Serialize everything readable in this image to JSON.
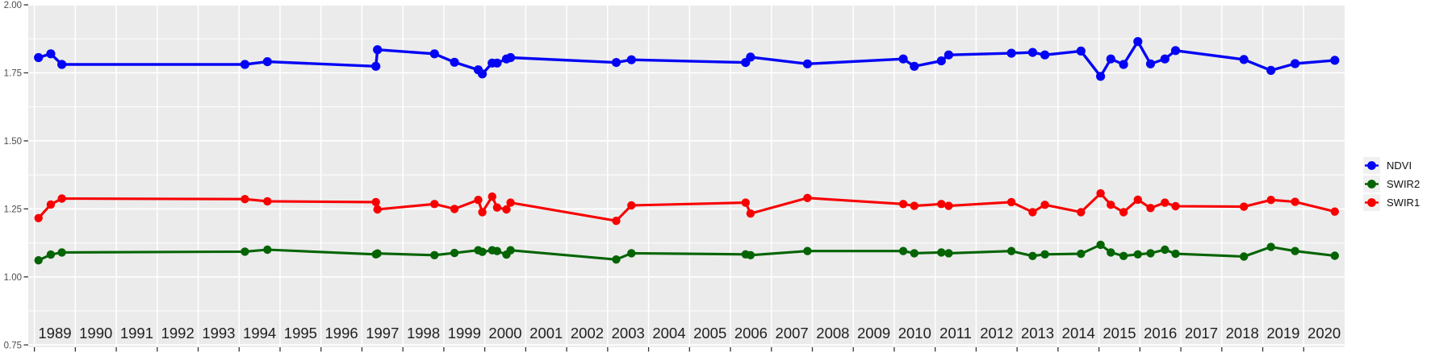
{
  "chart_data": {
    "type": "line",
    "title": "",
    "xlabel": "",
    "ylabel": "",
    "x_axis": {
      "range": [
        1988.85,
        2021.0
      ],
      "tick_years": [
        1989,
        1990,
        1991,
        1992,
        1993,
        1994,
        1995,
        1996,
        1997,
        1998,
        1999,
        2000,
        2001,
        2002,
        2003,
        2004,
        2005,
        2006,
        2007,
        2008,
        2009,
        2010,
        2011,
        2012,
        2013,
        2014,
        2015,
        2016,
        2017,
        2018,
        2019,
        2020
      ]
    },
    "y_axis": {
      "range": [
        0.745,
        2.005
      ],
      "tick_values": [
        0.75,
        1.0,
        1.25,
        1.5,
        1.75,
        2.0
      ],
      "tick_labels": [
        "0.75",
        "1.00",
        "1.25",
        "1.50",
        "1.75",
        "2.00"
      ],
      "minor_values": [
        0.875,
        1.125,
        1.375,
        1.625,
        1.875
      ]
    },
    "x": [
      1989.1,
      1989.4,
      1989.67,
      1994.14,
      1994.69,
      1997.34,
      1997.38,
      1998.77,
      1999.26,
      1999.84,
      1999.94,
      2000.18,
      2000.3,
      2000.53,
      2000.63,
      2003.21,
      2003.58,
      2006.37,
      2006.49,
      2007.88,
      2010.22,
      2010.49,
      2011.15,
      2011.33,
      2012.86,
      2013.38,
      2013.68,
      2014.56,
      2015.04,
      2015.29,
      2015.6,
      2015.95,
      2016.26,
      2016.61,
      2016.87,
      2018.54,
      2019.2,
      2019.79,
      2020.76
    ],
    "series": [
      {
        "name": "NDVI",
        "color": "#0404f5",
        "point_radius": 5.6,
        "line_width": 3.4,
        "values": [
          1.806,
          1.82,
          1.781,
          1.781,
          1.791,
          1.774,
          1.835,
          1.82,
          1.789,
          1.761,
          1.746,
          1.786,
          1.786,
          1.801,
          1.806,
          1.788,
          1.798,
          1.788,
          1.808,
          1.783,
          1.801,
          1.774,
          1.794,
          1.816,
          1.822,
          1.825,
          1.816,
          1.83,
          1.737,
          1.801,
          1.781,
          1.865,
          1.783,
          1.801,
          1.832,
          1.799,
          1.759,
          1.784,
          1.796
        ]
      },
      {
        "name": "SWIR2",
        "color": "#046404",
        "point_radius": 5.2,
        "line_width": 3.1,
        "values": [
          1.061,
          1.082,
          1.09,
          1.093,
          1.1,
          1.083,
          1.086,
          1.08,
          1.088,
          1.098,
          1.092,
          1.098,
          1.095,
          1.082,
          1.098,
          1.064,
          1.087,
          1.083,
          1.08,
          1.095,
          1.095,
          1.087,
          1.09,
          1.087,
          1.095,
          1.077,
          1.083,
          1.085,
          1.118,
          1.09,
          1.077,
          1.083,
          1.087,
          1.1,
          1.085,
          1.075,
          1.11,
          1.095,
          1.078
        ]
      },
      {
        "name": "SWIR1",
        "color": "#f80000",
        "point_radius": 5.2,
        "line_width": 3.1,
        "values": [
          1.216,
          1.266,
          1.288,
          1.286,
          1.278,
          1.275,
          1.248,
          1.268,
          1.25,
          1.283,
          1.238,
          1.295,
          1.255,
          1.248,
          1.273,
          1.206,
          1.263,
          1.273,
          1.233,
          1.29,
          1.268,
          1.261,
          1.268,
          1.261,
          1.275,
          1.238,
          1.265,
          1.238,
          1.307,
          1.265,
          1.238,
          1.284,
          1.253,
          1.273,
          1.26,
          1.258,
          1.283,
          1.276,
          1.24
        ]
      }
    ],
    "legend": {
      "position": "right",
      "entries": [
        "NDVI",
        "SWIR2",
        "SWIR1"
      ]
    },
    "style": {
      "panel_background": "#ebebeb",
      "gridline_color": "#ffffff",
      "axis_tick_color": "#333333",
      "x_label_color": "#1f1f1f",
      "y_label_color": "#4d4d4d"
    }
  }
}
